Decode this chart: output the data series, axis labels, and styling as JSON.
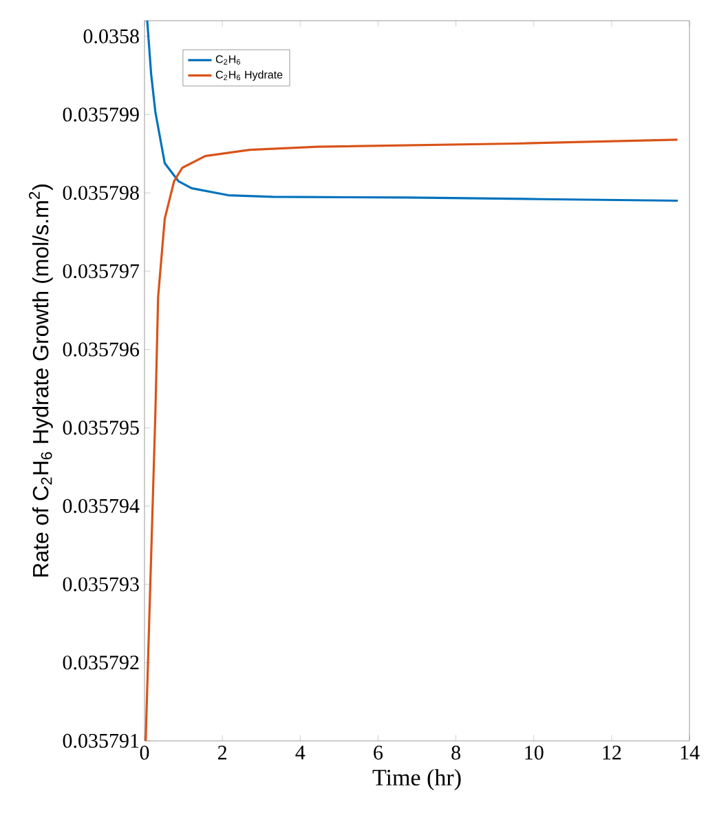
{
  "chart_data": {
    "type": "line",
    "xlabel": "Time (hr)",
    "ylabel": "Rate of C$_{2}$H$_{6}$ Hydrate Growth (mol/s.m$^{2}$)",
    "xlim": [
      0,
      14
    ],
    "xticks": [
      0,
      2,
      4,
      6,
      8,
      10,
      12,
      14
    ],
    "ylim": [
      0.035791,
      0.0358002
    ],
    "yticks": [
      {
        "value": 0.035791,
        "label": "0.035791"
      },
      {
        "value": 0.035792,
        "label": "0.035792"
      },
      {
        "value": 0.035793,
        "label": "0.035793"
      },
      {
        "value": 0.035794,
        "label": "0.035794"
      },
      {
        "value": 0.035795,
        "label": "0.035795"
      },
      {
        "value": 0.035796,
        "label": "0.035796"
      },
      {
        "value": 0.035797,
        "label": "0.035797"
      },
      {
        "value": 0.035798,
        "label": "0.035798"
      },
      {
        "value": 0.035799,
        "label": "0.035799"
      },
      {
        "value": 0.0358,
        "label": "0.0358"
      }
    ],
    "grid": false,
    "legend": "top left",
    "marker": "none",
    "line_style": "solid",
    "series": [
      {
        "name": "C$_{2}$H$_{6}$",
        "color": "#0072bd",
        "x": [
          0.07,
          0.17,
          0.28,
          0.52,
          0.87,
          1.21,
          2.15,
          3.29,
          6.76,
          10.2,
          13.7
        ],
        "values": [
          0.0358002,
          0.03579952,
          0.03579903,
          0.03579838,
          0.03579815,
          0.03579806,
          0.03579797,
          0.03579795,
          0.03579794,
          0.03579792,
          0.0357979
        ]
      },
      {
        "name": "C$_{2}$H$_{6}$ Hydrate",
        "color": "#d95319",
        "x": [
          0.03,
          0.28,
          0.35,
          0.52,
          0.76,
          0.97,
          1.56,
          2.7,
          4.44,
          9.53,
          13.69
        ],
        "values": [
          0.035791,
          0.0357952,
          0.03579667,
          0.03579767,
          0.03579815,
          0.03579832,
          0.03579847,
          0.03579855,
          0.03579859,
          0.03579863,
          0.03579868
        ]
      }
    ]
  }
}
